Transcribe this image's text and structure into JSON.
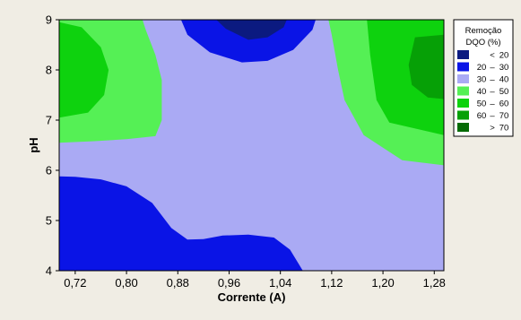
{
  "chart_data": {
    "type": "contour",
    "xlabel": "Corrente (A)",
    "ylabel": "pH",
    "xlim": [
      0.695,
      1.295
    ],
    "ylim": [
      4,
      9
    ],
    "x_ticks": [
      "0,72",
      "0,80",
      "0,88",
      "0,96",
      "1,04",
      "1,12",
      "1,20",
      "1,28"
    ],
    "y_ticks": [
      "4",
      "5",
      "6",
      "7",
      "8",
      "9"
    ],
    "legend": {
      "title_line1": "Remoção",
      "title_line2": "DQO (%)",
      "entries": [
        {
          "lo": "",
          "sep": "<",
          "hi": "20",
          "color": "#0b1a80"
        },
        {
          "lo": "20",
          "sep": "–",
          "hi": "30",
          "color": "#0a14e6"
        },
        {
          "lo": "30",
          "sep": "–",
          "hi": "40",
          "color": "#aaaaf4"
        },
        {
          "lo": "40",
          "sep": "–",
          "hi": "50",
          "color": "#55f055"
        },
        {
          "lo": "50",
          "sep": "–",
          "hi": "60",
          "color": "#0ed20e"
        },
        {
          "lo": "60",
          "sep": "–",
          "hi": "70",
          "color": "#06a006"
        },
        {
          "lo": "",
          "sep": ">",
          "hi": "70",
          "color": "#056b05"
        }
      ]
    },
    "regions": [
      {
        "name": "region-30-40-background",
        "level": "30-40",
        "points": [
          [
            0.695,
            4
          ],
          [
            1.295,
            4
          ],
          [
            1.295,
            9
          ],
          [
            0.695,
            9
          ]
        ]
      },
      {
        "name": "region-20-30-bottom",
        "level": "20-30",
        "points": [
          [
            0.695,
            4
          ],
          [
            0.695,
            5.88
          ],
          [
            0.72,
            5.87
          ],
          [
            0.76,
            5.82
          ],
          [
            0.8,
            5.68
          ],
          [
            0.84,
            5.35
          ],
          [
            0.87,
            4.85
          ],
          [
            0.895,
            4.62
          ],
          [
            0.92,
            4.63
          ],
          [
            0.95,
            4.7
          ],
          [
            0.99,
            4.72
          ],
          [
            1.03,
            4.66
          ],
          [
            1.055,
            4.42
          ],
          [
            1.075,
            4
          ]
        ]
      },
      {
        "name": "region-20-30-top",
        "level": "20-30",
        "points": [
          [
            0.885,
            9
          ],
          [
            0.895,
            8.7
          ],
          [
            0.93,
            8.35
          ],
          [
            0.98,
            8.15
          ],
          [
            1.02,
            8.18
          ],
          [
            1.06,
            8.4
          ],
          [
            1.09,
            8.8
          ],
          [
            1.095,
            9
          ]
        ]
      },
      {
        "name": "region-below-20-top",
        "level": "<20",
        "points": [
          [
            0.94,
            9
          ],
          [
            0.955,
            8.82
          ],
          [
            0.99,
            8.6
          ],
          [
            1.02,
            8.65
          ],
          [
            1.045,
            8.85
          ],
          [
            1.05,
            9
          ]
        ]
      },
      {
        "name": "region-40-50-left",
        "level": "40-50",
        "points": [
          [
            0.695,
            9
          ],
          [
            0.695,
            6.55
          ],
          [
            0.75,
            6.58
          ],
          [
            0.8,
            6.62
          ],
          [
            0.845,
            6.68
          ],
          [
            0.855,
            7
          ],
          [
            0.855,
            7.8
          ],
          [
            0.845,
            8.3
          ],
          [
            0.83,
            8.8
          ],
          [
            0.825,
            9
          ]
        ]
      },
      {
        "name": "region-50-60-left",
        "level": "50-60",
        "points": [
          [
            0.695,
            8.95
          ],
          [
            0.73,
            8.85
          ],
          [
            0.76,
            8.45
          ],
          [
            0.772,
            8
          ],
          [
            0.765,
            7.5
          ],
          [
            0.74,
            7.15
          ],
          [
            0.695,
            7.05
          ]
        ]
      },
      {
        "name": "region-40-50-right",
        "level": "40-50",
        "points": [
          [
            1.115,
            9
          ],
          [
            1.12,
            8.7
          ],
          [
            1.13,
            8.0
          ],
          [
            1.14,
            7.4
          ],
          [
            1.17,
            6.7
          ],
          [
            1.23,
            6.2
          ],
          [
            1.295,
            6.1
          ],
          [
            1.295,
            9
          ]
        ]
      },
      {
        "name": "region-50-60-right",
        "level": "50-60",
        "points": [
          [
            1.175,
            9
          ],
          [
            1.18,
            8.3
          ],
          [
            1.19,
            7.4
          ],
          [
            1.21,
            6.95
          ],
          [
            1.295,
            6.7
          ],
          [
            1.295,
            9
          ]
        ]
      },
      {
        "name": "region-60-70-right",
        "level": "60-70",
        "points": [
          [
            1.295,
            8.7
          ],
          [
            1.25,
            8.65
          ],
          [
            1.24,
            8.1
          ],
          [
            1.245,
            7.7
          ],
          [
            1.27,
            7.45
          ],
          [
            1.295,
            7.42
          ]
        ]
      }
    ]
  }
}
